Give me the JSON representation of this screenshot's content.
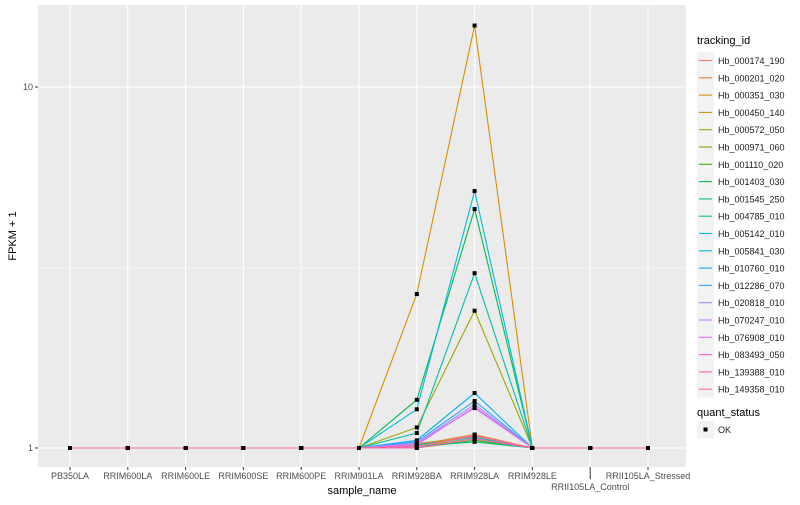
{
  "chart_data": {
    "type": "line",
    "xlabel": "sample_name",
    "ylabel": "FPKM + 1",
    "yscale": "log10",
    "ylim": [
      0.93,
      16.5
    ],
    "yticks": [
      1,
      10
    ],
    "ytick_labels": [
      "1",
      "10"
    ],
    "grid": true,
    "categories": [
      "PB350LA",
      "RRIM600LA",
      "RRIM600LE",
      "RRIM600SE",
      "RRIM600PE",
      "RRIM901LA",
      "RRIM928BA",
      "RRIM928LA",
      "RRIM928LE",
      "RRII105LA_Control",
      "RRII105LA_Stressed"
    ],
    "legend": {
      "title": "tracking_id",
      "placement": "right"
    },
    "shape_legend": {
      "title": "quant_status",
      "entries": [
        "OK"
      ]
    },
    "series": [
      {
        "name": "Hb_000174_190",
        "color": "#F8766D",
        "values": [
          1,
          1,
          1,
          1,
          1,
          1,
          1.02,
          1.08,
          1,
          1,
          1
        ]
      },
      {
        "name": "Hb_000201_020",
        "color": "#EA8331",
        "values": [
          1,
          1,
          1,
          1,
          1,
          1,
          1.02,
          1.09,
          1,
          1,
          1
        ]
      },
      {
        "name": "Hb_000351_030",
        "color": "#D89000",
        "values": [
          1,
          1,
          1,
          1,
          1,
          1,
          2.67,
          14.8,
          1,
          1,
          1
        ]
      },
      {
        "name": "Hb_000450_140",
        "color": "#C09B00",
        "values": [
          1,
          1,
          1,
          1,
          1,
          1,
          1.03,
          1.07,
          1,
          1,
          1
        ]
      },
      {
        "name": "Hb_000572_050",
        "color": "#A3A500",
        "values": [
          1,
          1,
          1,
          1,
          1,
          1,
          1.14,
          2.4,
          1,
          1,
          1
        ]
      },
      {
        "name": "Hb_000971_060",
        "color": "#7CAE00",
        "values": [
          1,
          1,
          1,
          1,
          1,
          1,
          1.01,
          1.06,
          1,
          1,
          1
        ]
      },
      {
        "name": "Hb_001110_020",
        "color": "#39B600",
        "values": [
          1,
          1,
          1,
          1,
          1,
          1,
          1.0,
          1.05,
          1,
          1,
          1
        ]
      },
      {
        "name": "Hb_001403_030",
        "color": "#00BB4E",
        "values": [
          1,
          1,
          1,
          1,
          1,
          1,
          1.36,
          4.59,
          1,
          1,
          1
        ]
      },
      {
        "name": "Hb_001545_250",
        "color": "#00BF7D",
        "values": [
          1,
          1,
          1,
          1,
          1,
          1,
          1.01,
          1.04,
          1,
          1,
          1
        ]
      },
      {
        "name": "Hb_004785_010",
        "color": "#00C1A3",
        "values": [
          1,
          1,
          1,
          1,
          1,
          1,
          1.1,
          3.05,
          1,
          1,
          1
        ]
      },
      {
        "name": "Hb_005142_010",
        "color": "#00BFC4",
        "values": [
          1,
          1,
          1,
          1,
          1,
          1,
          1.02,
          1.07,
          1,
          1,
          1
        ]
      },
      {
        "name": "Hb_005841_030",
        "color": "#00BAE0",
        "values": [
          1,
          1,
          1,
          1,
          1,
          1,
          1.28,
          5.15,
          1,
          1,
          1
        ]
      },
      {
        "name": "Hb_010760_010",
        "color": "#00B0F6",
        "values": [
          1,
          1,
          1,
          1,
          1,
          1,
          1.05,
          1.42,
          1,
          1,
          1
        ]
      },
      {
        "name": "Hb_012286_070",
        "color": "#35A2FF",
        "values": [
          1,
          1,
          1,
          1,
          1,
          1,
          1.04,
          1.35,
          1,
          1,
          1
        ]
      },
      {
        "name": "Hb_020818_010",
        "color": "#9590FF",
        "values": [
          1,
          1,
          1,
          1,
          1,
          1,
          1.03,
          1.32,
          1,
          1,
          1
        ]
      },
      {
        "name": "Hb_070247_010",
        "color": "#C77CFF",
        "values": [
          1,
          1,
          1,
          1,
          1,
          1,
          1.03,
          1.29,
          1,
          1,
          1
        ]
      },
      {
        "name": "Hb_076908_010",
        "color": "#E76BF3",
        "values": [
          1,
          1,
          1,
          1,
          1,
          1,
          1.02,
          1.3,
          1,
          1,
          1
        ]
      },
      {
        "name": "Hb_083493_050",
        "color": "#FA62DB",
        "values": [
          1,
          1,
          1,
          1,
          1,
          1,
          1.01,
          1.08,
          1,
          1,
          1
        ]
      },
      {
        "name": "Hb_139388_010",
        "color": "#FF62BC",
        "values": [
          1,
          1,
          1,
          1,
          1,
          1,
          1.0,
          1.06,
          1,
          1,
          1
        ]
      },
      {
        "name": "Hb_149358_010",
        "color": "#FF6C91",
        "values": [
          1,
          1,
          1,
          1,
          1,
          1,
          1.01,
          1.08,
          1,
          1,
          1
        ]
      }
    ]
  }
}
